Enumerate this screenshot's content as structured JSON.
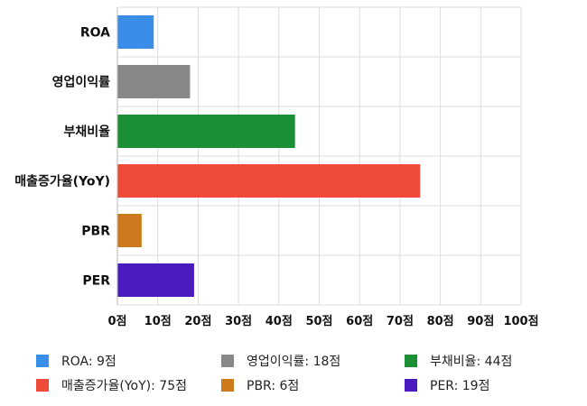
{
  "chart_data": {
    "type": "bar",
    "orientation": "horizontal",
    "categories": [
      "ROA",
      "영업이익률",
      "부채비율",
      "매출증가율(YoY)",
      "PBR",
      "PER"
    ],
    "values": [
      9,
      18,
      44,
      75,
      6,
      19
    ],
    "colors": [
      "#3b8ee8",
      "#888888",
      "#1a8f35",
      "#ee4c38",
      "#cc7a1c",
      "#4a1cc0"
    ],
    "xlim": [
      0,
      100
    ],
    "xticks": [
      0,
      10,
      20,
      30,
      40,
      50,
      60,
      70,
      80,
      90,
      100
    ],
    "tick_suffix": "점",
    "grid": true,
    "legend_position": "bottom",
    "legend": [
      {
        "label": "ROA: 9점",
        "color": "#3b8ee8"
      },
      {
        "label": "영업이익률: 18점",
        "color": "#888888"
      },
      {
        "label": "부채비율: 44점",
        "color": "#1a8f35"
      },
      {
        "label": "매출증가율(YoY): 75점",
        "color": "#ee4c38"
      },
      {
        "label": "PBR: 6점",
        "color": "#cc7a1c"
      },
      {
        "label": "PER: 19점",
        "color": "#4a1cc0"
      }
    ]
  }
}
